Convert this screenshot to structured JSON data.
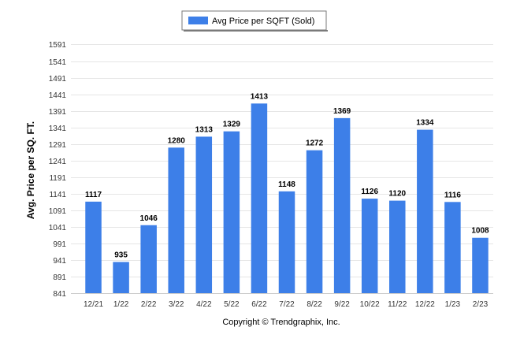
{
  "chart_data": {
    "type": "bar",
    "title": "",
    "xlabel": "",
    "ylabel": "Avg. Price per SQ. FT.",
    "categories": [
      "12/21",
      "1/22",
      "2/22",
      "3/22",
      "4/22",
      "5/22",
      "6/22",
      "7/22",
      "8/22",
      "9/22",
      "10/22",
      "11/22",
      "12/22",
      "1/23",
      "2/23"
    ],
    "series": [
      {
        "name": "Avg Price per SQFT (Sold)",
        "values": [
          1117,
          935,
          1046,
          1280,
          1313,
          1329,
          1413,
          1148,
          1272,
          1369,
          1126,
          1120,
          1334,
          1116,
          1008
        ],
        "color": "#3d7fe8"
      }
    ],
    "yticks": [
      841,
      891,
      941,
      991,
      1041,
      1091,
      1141,
      1191,
      1241,
      1291,
      1341,
      1391,
      1441,
      1491,
      1541,
      1591
    ],
    "ylim": [
      841,
      1604
    ],
    "grid": true,
    "legend_position": "top-center",
    "data_labels": true
  },
  "footer": {
    "copyright": "Copyright © Trendgraphix, Inc."
  }
}
